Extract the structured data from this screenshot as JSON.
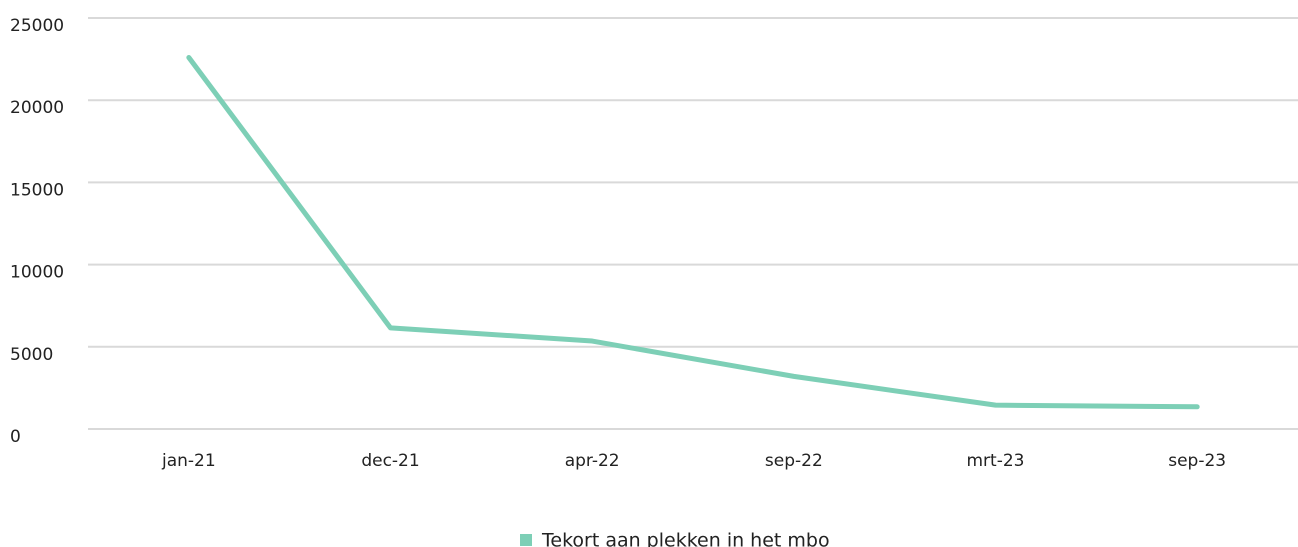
{
  "chart_data": {
    "type": "line",
    "categories": [
      "jan-21",
      "dec-21",
      "apr-22",
      "sep-22",
      "mrt-23",
      "sep-23"
    ],
    "series": [
      {
        "name": "Tekort aan plekken in het mbo",
        "color": "#7dcfb6",
        "values": [
          22600,
          6150,
          5350,
          3200,
          1450,
          1350
        ]
      }
    ],
    "ylim": [
      0,
      25000
    ],
    "yticks": [
      0,
      5000,
      10000,
      15000,
      20000,
      25000
    ],
    "grid": true,
    "legend": "bottom"
  }
}
